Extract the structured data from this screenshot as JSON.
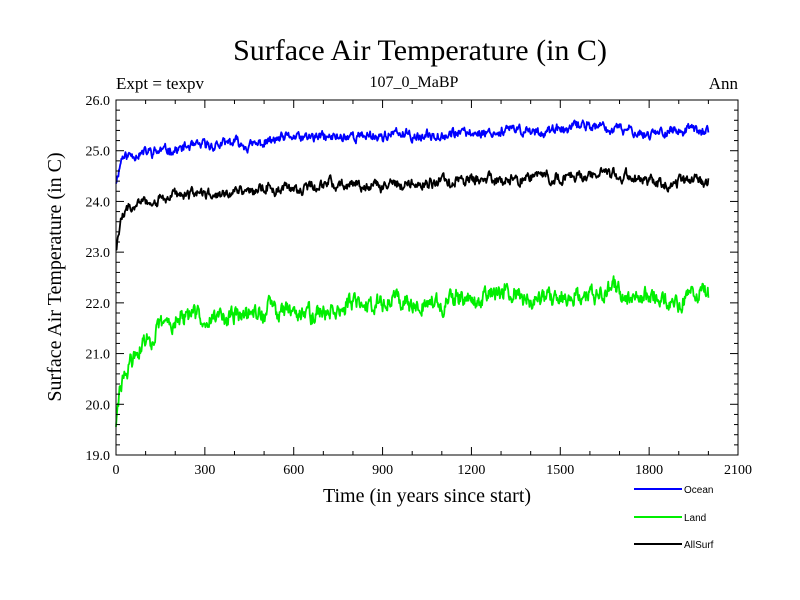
{
  "chart_data": {
    "type": "line",
    "title": "Surface Air Temperature (in C)",
    "subtitle_left": "Expt = texpv",
    "subtitle_center": "107_0_MaBP",
    "subtitle_right": "Ann",
    "xlabel": "Time (in years since start)",
    "ylabel": "Surface Air Temperature (in C)",
    "xlim": [
      0,
      2100
    ],
    "ylim": [
      19.0,
      26.0
    ],
    "xticks": [
      "0",
      "300",
      "600",
      "900",
      "1200",
      "1500",
      "1800",
      "2100"
    ],
    "yticks": [
      "19.0",
      "20.0",
      "21.0",
      "22.0",
      "23.0",
      "24.0",
      "25.0",
      "26.0"
    ],
    "x_range_years": [
      0,
      2000
    ],
    "series": [
      {
        "name": "Ocean",
        "color": "#0000ff",
        "approx_trend_points": [
          [
            0,
            24.4
          ],
          [
            20,
            24.9
          ],
          [
            50,
            24.95
          ],
          [
            150,
            25.05
          ],
          [
            300,
            25.1
          ],
          [
            600,
            25.2
          ],
          [
            900,
            25.3
          ],
          [
            1200,
            25.35
          ],
          [
            1500,
            25.4
          ],
          [
            1600,
            25.5
          ],
          [
            1800,
            25.35
          ],
          [
            2000,
            25.35
          ]
        ],
        "noise_amplitude": 0.12
      },
      {
        "name": "Land",
        "color": "#00ee00",
        "approx_trend_points": [
          [
            0,
            19.6
          ],
          [
            20,
            20.5
          ],
          [
            60,
            20.9
          ],
          [
            100,
            21.2
          ],
          [
            150,
            21.45
          ],
          [
            200,
            21.6
          ],
          [
            300,
            21.75
          ],
          [
            500,
            21.85
          ],
          [
            700,
            21.95
          ],
          [
            900,
            22.0
          ],
          [
            1200,
            22.05
          ],
          [
            1500,
            22.1
          ],
          [
            1600,
            22.2
          ],
          [
            1800,
            22.1
          ],
          [
            2000,
            22.1
          ]
        ],
        "noise_amplitude": 0.22
      },
      {
        "name": "AllSurf",
        "color": "#000000",
        "approx_trend_points": [
          [
            0,
            23.1
          ],
          [
            20,
            23.7
          ],
          [
            50,
            23.85
          ],
          [
            100,
            24.0
          ],
          [
            200,
            24.15
          ],
          [
            400,
            24.25
          ],
          [
            600,
            24.3
          ],
          [
            900,
            24.35
          ],
          [
            1200,
            24.4
          ],
          [
            1500,
            24.45
          ],
          [
            1600,
            24.55
          ],
          [
            1800,
            24.45
          ],
          [
            2000,
            24.45
          ]
        ],
        "noise_amplitude": 0.13
      }
    ],
    "legend": [
      "Ocean",
      "Land",
      "AllSurf"
    ],
    "legend_position": "bottom-right"
  }
}
